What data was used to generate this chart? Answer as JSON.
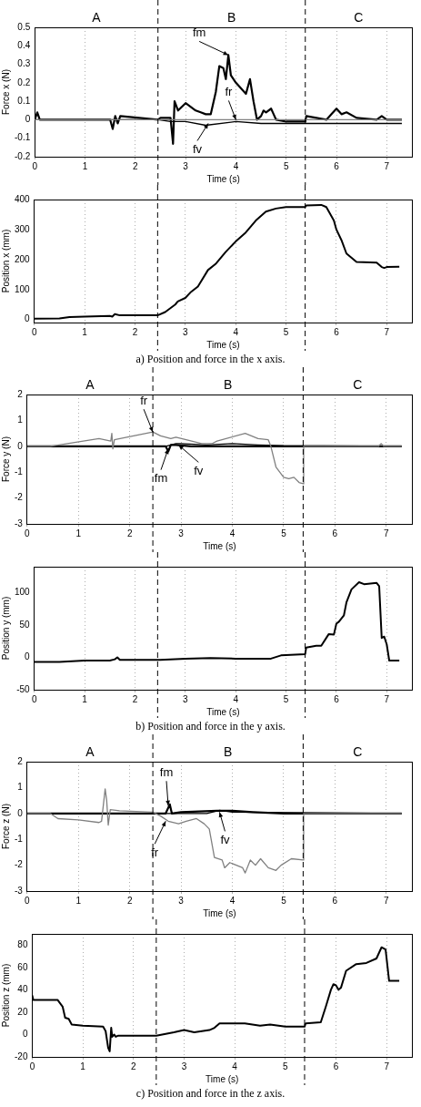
{
  "chart_data": [
    {
      "type": "line",
      "xlabel": "Time (s)",
      "ylabel": "Force x (N)",
      "xlim": [
        0,
        7.5
      ],
      "xticks": [
        0,
        1,
        2,
        3,
        4,
        5,
        6,
        7
      ],
      "ylim": [
        -0.2,
        0.5
      ],
      "yticks": [
        -0.2,
        -0.1,
        0,
        0.1,
        0.2,
        0.3,
        0.4,
        0.5
      ],
      "grid": "x",
      "marker": "none",
      "line_style": "solid",
      "legend": false,
      "series": [
        {
          "color": "#808080",
          "x": [
            0,
            2.45,
            3,
            4,
            5,
            6,
            7,
            7.3
          ],
          "values": [
            0,
            0,
            0,
            0,
            0,
            0,
            0,
            0
          ]
        },
        {
          "color": "#000000",
          "x": [
            0,
            2.45,
            2.7,
            3,
            3.4,
            4,
            4.5,
            5,
            6,
            7,
            7.3
          ],
          "values": [
            0,
            0,
            -0.01,
            -0.01,
            -0.03,
            -0.01,
            -0.02,
            -0.02,
            -0.02,
            -0.02,
            -0.02
          ]
        },
        {
          "color": "#000000",
          "x": [
            0,
            0.05,
            0.1,
            1.5,
            1.55,
            1.6,
            1.65,
            1.7,
            2.45,
            2.5,
            2.7,
            2.75,
            2.78,
            2.85,
            3.0,
            3.2,
            3.3,
            3.4,
            3.5,
            3.6,
            3.67,
            3.75,
            3.8,
            3.85,
            3.9,
            4.0,
            4.2,
            4.28,
            4.35,
            4.42,
            4.5,
            4.55,
            4.6,
            4.7,
            4.75,
            4.8,
            5.0,
            5.38,
            5.4,
            5.8,
            5.9,
            6.0,
            6.1,
            6.2,
            6.4,
            6.8,
            6.9,
            7.0,
            7.3
          ],
          "values": [
            0,
            0.04,
            0,
            0,
            -0.05,
            0.02,
            -0.02,
            0.02,
            0,
            0.01,
            0.01,
            -0.13,
            0.1,
            0.05,
            0.09,
            0.05,
            0.04,
            0.03,
            0.03,
            0.15,
            0.29,
            0.28,
            0.22,
            0.35,
            0.24,
            0.2,
            0.14,
            0.22,
            0.1,
            0,
            0.02,
            0.05,
            0.04,
            0.06,
            0.03,
            0,
            -0.01,
            -0.01,
            0.02,
            0,
            0.03,
            0.06,
            0.03,
            0.04,
            0.01,
            0,
            0.02,
            0,
            0
          ]
        }
      ],
      "ref_lines": [
        {
          "axis": "x",
          "value": 2.45,
          "color": "#000000",
          "line_style": "dashed"
        },
        {
          "axis": "x",
          "value": 5.38,
          "color": "#000000",
          "line_style": "dashed"
        }
      ],
      "annotations": [
        "A",
        "B",
        "C",
        {
          "text": "fm",
          "x": 3.85,
          "y": 0.35
        },
        {
          "text": "fr",
          "x": 4.0,
          "y": 0.0
        },
        {
          "text": "fv",
          "x": 3.45,
          "y": -0.02
        }
      ]
    },
    {
      "type": "line",
      "xlabel": "Time (s)",
      "ylabel": "Position x (mm)",
      "xlim": [
        0,
        7.5
      ],
      "xticks": [
        0,
        1,
        2,
        3,
        4,
        5,
        6,
        7
      ],
      "ylim": [
        -10,
        400
      ],
      "yticks": [
        0,
        100,
        200,
        300,
        400
      ],
      "grid": "x",
      "marker": "none",
      "line_style": "solid",
      "legend": false,
      "series": [
        {
          "color": "#000000",
          "x": [
            0,
            0.5,
            0.7,
            1.0,
            1.5,
            1.55,
            1.6,
            1.7,
            2.45,
            2.6,
            2.8,
            2.85,
            3.0,
            3.1,
            3.25,
            3.45,
            3.6,
            3.8,
            4.0,
            4.2,
            4.4,
            4.6,
            4.8,
            5.0,
            5.38,
            5.4,
            5.7,
            5.8,
            5.95,
            6.0,
            6.1,
            6.2,
            6.4,
            6.8,
            6.9,
            6.95,
            7.0,
            7.25
          ],
          "values": [
            3,
            4,
            8,
            10,
            12,
            10,
            18,
            14,
            14,
            25,
            50,
            60,
            72,
            90,
            110,
            165,
            185,
            225,
            260,
            290,
            330,
            360,
            370,
            375,
            375,
            380,
            382,
            375,
            330,
            300,
            265,
            220,
            192,
            190,
            175,
            172,
            175,
            176
          ]
        }
      ],
      "ref_lines": [
        {
          "axis": "x",
          "value": 2.45,
          "color": "#000000",
          "line_style": "dashed"
        },
        {
          "axis": "x",
          "value": 5.38,
          "color": "#000000",
          "line_style": "dashed"
        }
      ],
      "annotations": [
        "a) Position and force in the x axis."
      ]
    },
    {
      "type": "line",
      "xlabel": "Time (s)",
      "ylabel": "Force y (N)",
      "xlim": [
        0,
        7.5
      ],
      "xticks": [
        0,
        1,
        2,
        3,
        4,
        5,
        6,
        7
      ],
      "ylim": [
        -3,
        2
      ],
      "yticks": [
        -3,
        -2,
        -1,
        0,
        1,
        2
      ],
      "grid": "x",
      "marker": "none",
      "line_style": "solid",
      "legend": false,
      "series": [
        {
          "color": "#808080",
          "x": [
            0,
            0.45,
            1.4,
            1.63,
            1.65,
            1.67,
            1.7,
            2.45,
            2.6,
            2.8,
            2.9,
            3.1,
            3.4,
            3.6,
            3.7,
            4.25,
            4.5,
            4.7,
            4.75,
            4.85,
            5.0,
            5.1,
            5.2,
            5.3,
            5.38,
            5.39,
            6.85,
            6.9,
            6.95,
            7.3
          ],
          "values": [
            0,
            0,
            0.3,
            0.2,
            0.5,
            -0.1,
            0.25,
            0.55,
            0.4,
            0.3,
            0.35,
            0.25,
            0.1,
            0.1,
            0.2,
            0.5,
            0.3,
            0.25,
            0,
            -0.8,
            -1.2,
            -1.25,
            -1.2,
            -1.4,
            -1.45,
            0,
            0,
            0.1,
            0,
            0
          ]
        },
        {
          "color": "#000000",
          "x": [
            0,
            2.7,
            2.9,
            3.0,
            3.5,
            4.0,
            4.5,
            5.0,
            7.3
          ],
          "values": [
            0,
            0,
            0.1,
            0.1,
            0.05,
            0.1,
            0.05,
            0.02,
            0
          ]
        },
        {
          "color": "#000000",
          "x": [
            0,
            2.7,
            2.75,
            2.8,
            2.9,
            3.2,
            7.3
          ],
          "values": [
            0,
            0,
            -0.2,
            0.05,
            0.05,
            0,
            0
          ]
        }
      ],
      "ref_lines": [
        {
          "axis": "x",
          "value": 2.45,
          "color": "#000000",
          "line_style": "dashed"
        },
        {
          "axis": "x",
          "value": 5.38,
          "color": "#000000",
          "line_style": "dashed"
        }
      ],
      "annotations": [
        "A",
        "B",
        "C",
        {
          "text": "fr",
          "x": 2.45,
          "y": 0.55
        },
        {
          "text": "fm",
          "x": 2.75,
          "y": -0.1
        },
        {
          "text": "fv",
          "x": 2.95,
          "y": 0.05
        }
      ]
    },
    {
      "type": "line",
      "xlabel": "Time (s)",
      "ylabel": "Position y (mm)",
      "xlim": [
        0,
        7.5
      ],
      "xticks": [
        0,
        1,
        2,
        3,
        4,
        5,
        6,
        7
      ],
      "ylim": [
        -50,
        140
      ],
      "yticks": [
        -50,
        0,
        50,
        100
      ],
      "grid": "x",
      "marker": "none",
      "line_style": "solid",
      "legend": false,
      "series": [
        {
          "color": "#000000",
          "x": [
            0,
            0.5,
            1.0,
            1.5,
            1.6,
            1.65,
            1.7,
            2.5,
            3.0,
            3.5,
            4.0,
            4.7,
            4.9,
            5.38,
            5.4,
            5.6,
            5.7,
            5.8,
            5.85,
            5.95,
            6.0,
            6.05,
            6.15,
            6.2,
            6.3,
            6.45,
            6.55,
            6.8,
            6.85,
            6.9,
            6.95,
            7.0,
            7.05,
            7.25
          ],
          "values": [
            -7,
            -7,
            -5,
            -5,
            -3,
            0,
            -4,
            -4,
            -2,
            -1,
            -2,
            -2,
            3,
            5,
            15,
            18,
            18,
            30,
            36,
            35,
            52,
            55,
            65,
            85,
            105,
            116,
            113,
            115,
            110,
            30,
            32,
            20,
            -5,
            -5
          ]
        }
      ],
      "ref_lines": [
        {
          "axis": "x",
          "value": 2.45,
          "color": "#000000",
          "line_style": "dashed"
        },
        {
          "axis": "x",
          "value": 5.38,
          "color": "#000000",
          "line_style": "dashed"
        }
      ],
      "annotations": [
        "b) Position and force in the y axis."
      ]
    },
    {
      "type": "line",
      "xlabel": "Time (s)",
      "ylabel": "Force z (N)",
      "xlim": [
        0,
        7.5
      ],
      "xticks": [
        0,
        1,
        2,
        3,
        4,
        5,
        6,
        7
      ],
      "ylim": [
        -3,
        2
      ],
      "yticks": [
        -3,
        -2,
        -1,
        0,
        1,
        2
      ],
      "grid": "x",
      "marker": "none",
      "line_style": "solid",
      "legend": false,
      "series": [
        {
          "color": "#808080",
          "x": [
            0,
            0.45,
            0.6,
            1.0,
            1.4,
            1.45,
            1.52,
            1.55,
            1.58,
            1.62,
            1.8,
            2.45,
            2.6,
            2.75,
            2.95,
            3.1,
            3.3,
            3.45,
            3.55,
            3.65,
            3.8,
            3.85,
            3.95,
            4.2,
            4.25,
            4.35,
            4.45,
            4.55,
            4.7,
            4.85,
            4.95,
            5.15,
            5.38,
            5.39,
            7.3
          ],
          "values": [
            0,
            0,
            -0.2,
            -0.25,
            -0.35,
            -0.3,
            0.95,
            0.5,
            -0.45,
            0.15,
            0.1,
            0.05,
            -0.1,
            -0.3,
            -0.4,
            -0.3,
            -0.2,
            -0.4,
            -0.6,
            -1.7,
            -1.8,
            -2.1,
            -1.9,
            -2.1,
            -2.3,
            -1.8,
            -2.0,
            -1.75,
            -2.1,
            -2.2,
            -2.0,
            -1.75,
            -1.8,
            0,
            0
          ]
        },
        {
          "color": "#000000",
          "x": [
            0,
            3.5,
            3.75,
            4.0,
            7.3
          ],
          "values": [
            0,
            0,
            0.12,
            0.05,
            0
          ]
        },
        {
          "color": "#000000",
          "x": [
            0,
            2.7,
            2.78,
            2.82,
            3.0,
            3.7,
            4.0,
            4.4,
            5.0,
            7.3
          ],
          "values": [
            0,
            0,
            0.35,
            0,
            0.05,
            0.1,
            0.1,
            0.05,
            0,
            0
          ]
        }
      ],
      "ref_lines": [
        {
          "axis": "x",
          "value": 2.45,
          "color": "#000000",
          "line_style": "dashed"
        },
        {
          "axis": "x",
          "value": 5.38,
          "color": "#000000",
          "line_style": "dashed"
        }
      ],
      "annotations": [
        "A",
        "B",
        "C",
        {
          "text": "fm",
          "x": 2.75,
          "y": 0.3
        },
        {
          "text": "fr",
          "x": 2.7,
          "y": -0.3
        },
        {
          "text": "fv",
          "x": 3.75,
          "y": 0.05
        }
      ]
    },
    {
      "type": "line",
      "xlabel": "Time (s)",
      "ylabel": "Position z (mm)",
      "xlim": [
        0,
        7.5
      ],
      "xticks": [
        0,
        1,
        2,
        3,
        4,
        5,
        6,
        7
      ],
      "ylim": [
        -20,
        90
      ],
      "yticks": [
        -20,
        0,
        20,
        40,
        60,
        80
      ],
      "grid": "x",
      "marker": "none",
      "line_style": "solid",
      "legend": false,
      "series": [
        {
          "color": "#000000",
          "x": [
            0,
            0.02,
            0.5,
            0.6,
            0.65,
            0.72,
            0.78,
            1.0,
            1.4,
            1.45,
            1.5,
            1.53,
            1.56,
            1.58,
            1.62,
            1.65,
            1.7,
            2.45,
            2.8,
            3.0,
            3.2,
            3.5,
            3.6,
            3.7,
            4.0,
            4.2,
            4.5,
            4.7,
            5.0,
            5.38,
            5.4,
            5.7,
            5.8,
            5.9,
            5.95,
            6.0,
            6.05,
            6.1,
            6.2,
            6.4,
            6.6,
            6.8,
            6.9,
            6.98,
            7.05,
            7.25
          ],
          "values": [
            35,
            31,
            31,
            25,
            15,
            14,
            9,
            8,
            7,
            3,
            -12,
            -15,
            6,
            -2,
            0,
            -2,
            -1,
            -1,
            2,
            4,
            2,
            4,
            6,
            10,
            10,
            10,
            8,
            9,
            7,
            7,
            10,
            11,
            25,
            40,
            45,
            44,
            40,
            42,
            57,
            63,
            64,
            68,
            78,
            76,
            48,
            48
          ]
        }
      ],
      "ref_lines": [
        {
          "axis": "x",
          "value": 2.45,
          "color": "#000000",
          "line_style": "dashed"
        },
        {
          "axis": "x",
          "value": 5.38,
          "color": "#000000",
          "line_style": "dashed"
        }
      ],
      "annotations": [
        "c) Position and force in the z axis."
      ]
    }
  ]
}
